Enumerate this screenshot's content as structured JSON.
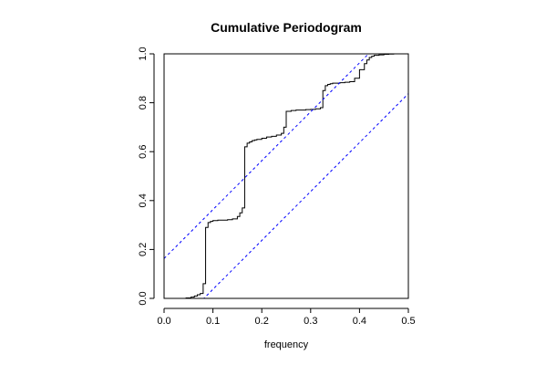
{
  "chart_data": {
    "type": "line",
    "title": "Cumulative Periodogram",
    "xlabel": "frequency",
    "ylabel": "",
    "xlim": [
      0,
      0.5
    ],
    "ylim": [
      0,
      1
    ],
    "x_ticks": [
      "0.0",
      "0.1",
      "0.2",
      "0.3",
      "0.4",
      "0.5"
    ],
    "y_ticks": [
      "0.0",
      "0.2",
      "0.4",
      "0.6",
      "0.8",
      "1.0"
    ],
    "grid": false,
    "legend": "none",
    "series": [
      {
        "style": "step",
        "color": "#000000",
        "x": [
          0,
          0.045,
          0.055,
          0.062,
          0.068,
          0.074,
          0.08,
          0.085,
          0.09,
          0.095,
          0.1,
          0.11,
          0.12,
          0.13,
          0.14,
          0.15,
          0.155,
          0.16,
          0.165,
          0.17,
          0.175,
          0.18,
          0.185,
          0.19,
          0.2,
          0.21,
          0.22,
          0.23,
          0.24,
          0.245,
          0.25,
          0.26,
          0.27,
          0.28,
          0.29,
          0.3,
          0.31,
          0.32,
          0.325,
          0.33,
          0.335,
          0.34,
          0.345,
          0.36,
          0.37,
          0.38,
          0.39,
          0.4,
          0.41,
          0.415,
          0.42,
          0.425,
          0.43,
          0.44,
          0.45,
          0.46,
          0.47,
          0.48,
          0.5
        ],
        "y": [
          0,
          0.002,
          0.005,
          0.01,
          0.015,
          0.02,
          0.06,
          0.29,
          0.31,
          0.315,
          0.318,
          0.32,
          0.32,
          0.322,
          0.325,
          0.335,
          0.35,
          0.37,
          0.62,
          0.635,
          0.64,
          0.645,
          0.648,
          0.65,
          0.655,
          0.66,
          0.663,
          0.668,
          0.675,
          0.7,
          0.765,
          0.768,
          0.77,
          0.77,
          0.772,
          0.773,
          0.775,
          0.78,
          0.85,
          0.87,
          0.875,
          0.878,
          0.88,
          0.882,
          0.884,
          0.886,
          0.9,
          0.935,
          0.96,
          0.975,
          0.985,
          0.99,
          0.994,
          0.996,
          0.998,
          0.999,
          1.0,
          1.0,
          1.0
        ]
      },
      {
        "style": "dashed",
        "color": "#0000ff",
        "x": [
          0,
          0.5
        ],
        "y": [
          0.163,
          1.163
        ]
      },
      {
        "style": "dashed",
        "color": "#0000ff",
        "x": [
          0,
          0.5
        ],
        "y": [
          -0.163,
          0.837
        ]
      }
    ]
  }
}
